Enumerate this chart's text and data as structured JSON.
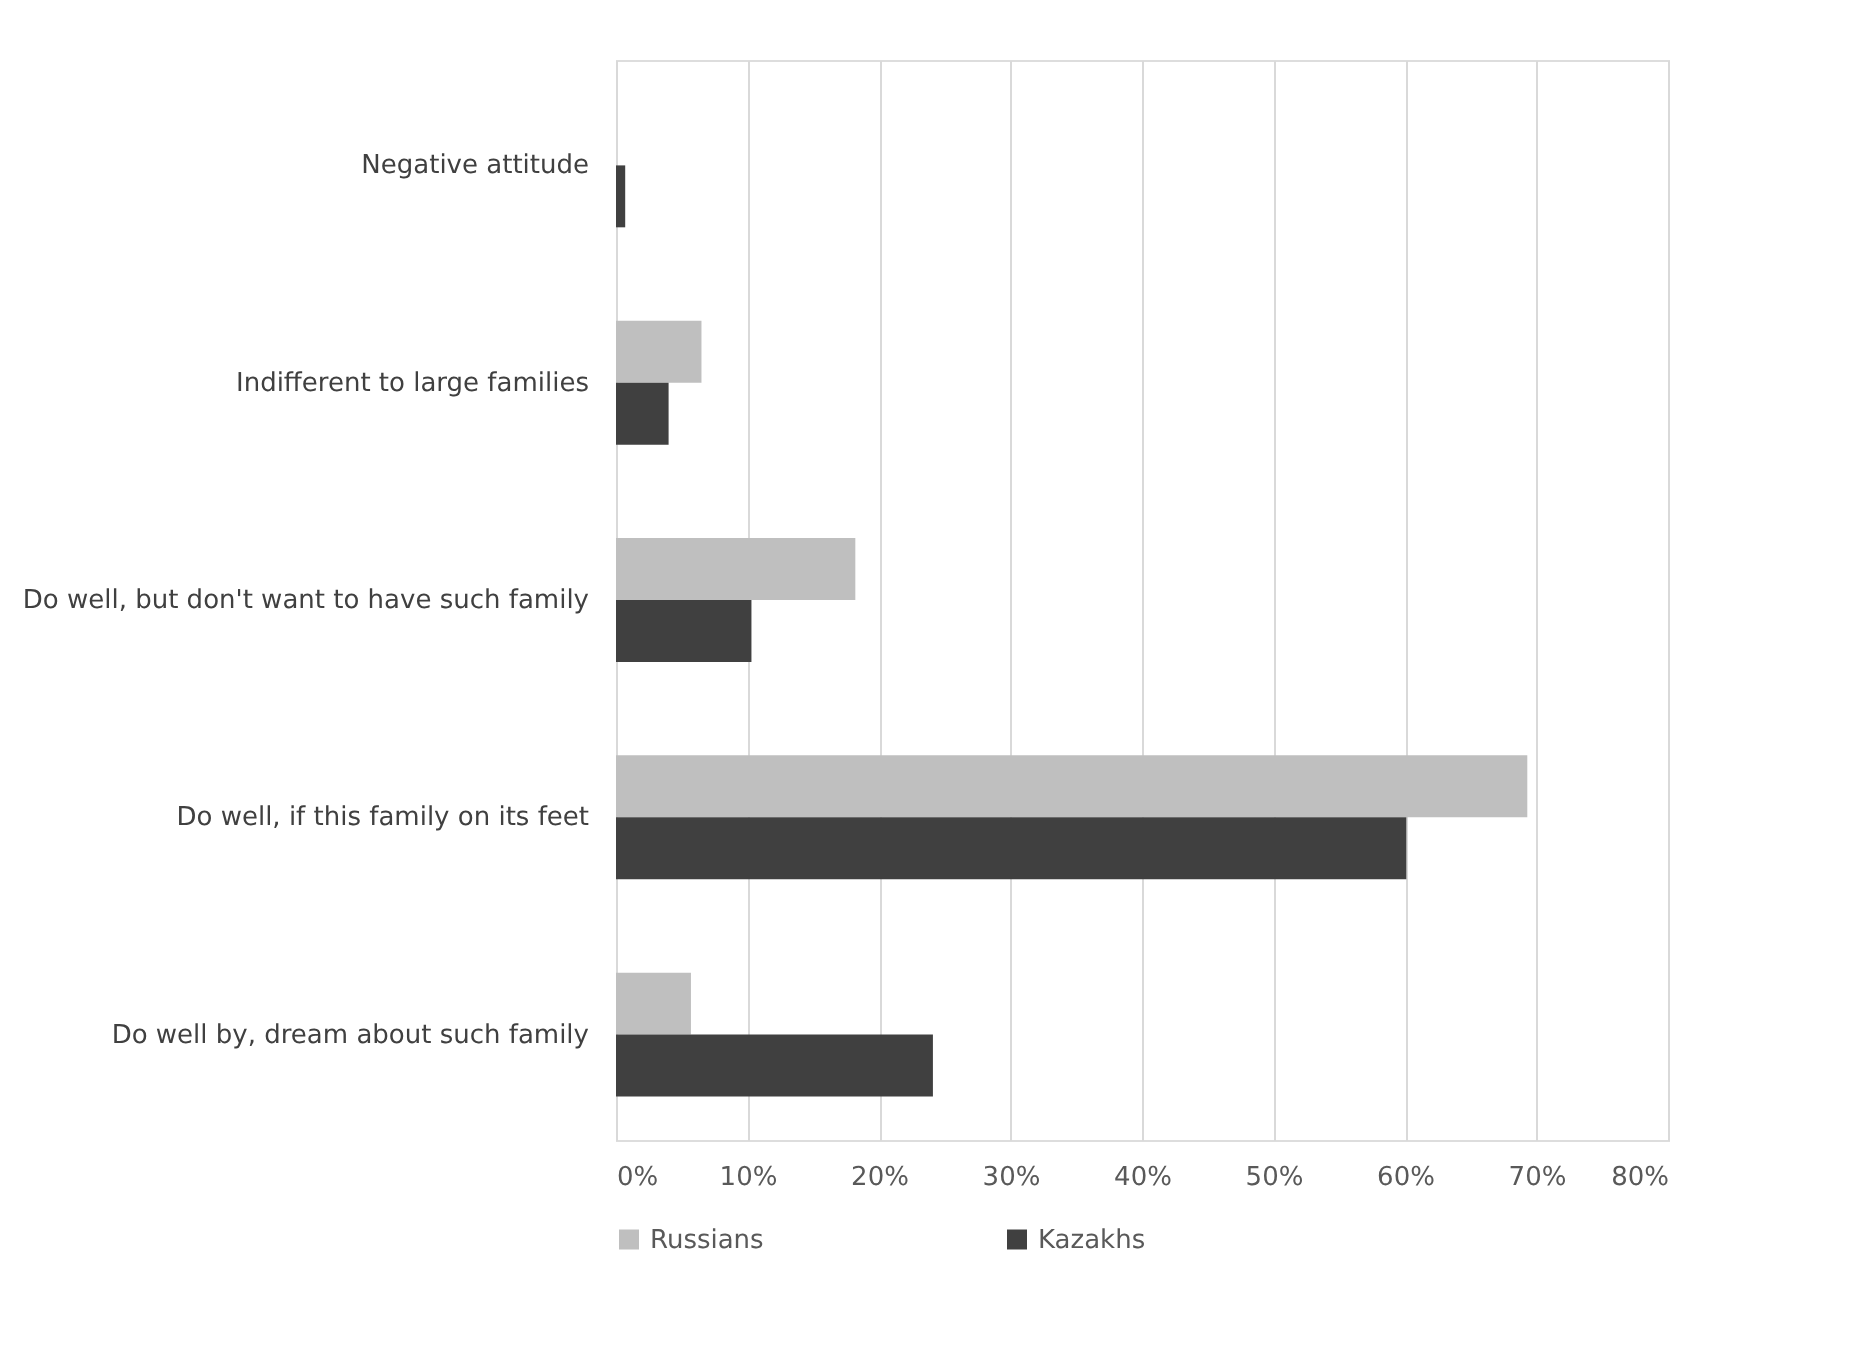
{
  "chart_data": {
    "type": "bar",
    "orientation": "horizontal",
    "categories": [
      "Negative attitude",
      "Indifferent to large families",
      "Do well, but don't want to have such family",
      "Do well, if this family on its feet",
      "Do well by, dream about such family"
    ],
    "series": [
      {
        "name": "Russians",
        "color": "#bfbfbf",
        "values": [
          0,
          6.5,
          18.2,
          69.3,
          5.7
        ]
      },
      {
        "name": "Kazakhs",
        "color": "#404040",
        "values": [
          0.7,
          4.0,
          10.3,
          60.1,
          24.1
        ]
      }
    ],
    "xlim": [
      0,
      80
    ],
    "xticks": [
      {
        "value": 0,
        "label": "0%"
      },
      {
        "value": 10,
        "label": "10%"
      },
      {
        "value": 20,
        "label": "20%"
      },
      {
        "value": 30,
        "label": "30%"
      },
      {
        "value": 40,
        "label": "40%"
      },
      {
        "value": 50,
        "label": "50%"
      },
      {
        "value": 60,
        "label": "60%"
      },
      {
        "value": 70,
        "label": "70%"
      },
      {
        "value": 80,
        "label": "80%"
      }
    ],
    "grid": "x",
    "legend": "bottom"
  }
}
